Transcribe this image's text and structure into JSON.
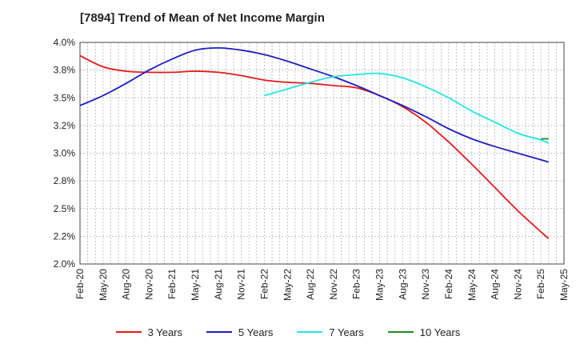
{
  "chart_data": {
    "type": "line",
    "title": "[7894]  Trend of Mean of Net Income Margin",
    "xlabel": "",
    "ylabel": "",
    "x_ticks": [
      "Feb-20",
      "May-20",
      "Aug-20",
      "Nov-20",
      "Feb-21",
      "May-21",
      "Aug-21",
      "Nov-21",
      "Feb-22",
      "May-22",
      "Aug-22",
      "Nov-22",
      "Feb-23",
      "May-23",
      "Aug-23",
      "Nov-23",
      "Feb-24",
      "May-24",
      "Aug-24",
      "Nov-24",
      "Feb-25",
      "May-25"
    ],
    "y_ticks": [
      "2.0%",
      "2.2%",
      "2.5%",
      "2.8%",
      "3.0%",
      "3.2%",
      "3.5%",
      "3.8%",
      "4.0%"
    ],
    "y_tick_values": [
      2.0,
      2.25,
      2.5,
      2.75,
      3.0,
      3.25,
      3.5,
      3.75,
      4.0
    ],
    "ylim": [
      2.0,
      4.0
    ],
    "grid": true,
    "legend_position": "bottom",
    "series": [
      {
        "name": "3 Years",
        "color": "#e31a1c",
        "points": [
          [
            "Feb-20",
            3.88
          ],
          [
            "May-20",
            3.78
          ],
          [
            "Aug-20",
            3.74
          ],
          [
            "Nov-20",
            3.73
          ],
          [
            "Feb-21",
            3.73
          ],
          [
            "May-21",
            3.74
          ],
          [
            "Aug-21",
            3.73
          ],
          [
            "Nov-21",
            3.7
          ],
          [
            "Feb-22",
            3.66
          ],
          [
            "May-22",
            3.64
          ],
          [
            "Aug-22",
            3.63
          ],
          [
            "Nov-22",
            3.61
          ],
          [
            "Feb-23",
            3.59
          ],
          [
            "May-23",
            3.52
          ],
          [
            "Aug-23",
            3.42
          ],
          [
            "Nov-23",
            3.28
          ],
          [
            "Feb-24",
            3.1
          ],
          [
            "May-24",
            2.9
          ],
          [
            "Aug-24",
            2.69
          ],
          [
            "Nov-24",
            2.48
          ],
          [
            "Feb-25",
            2.29
          ],
          [
            "Mar-25",
            2.23
          ]
        ]
      },
      {
        "name": "5 Years",
        "color": "#1f1fbf",
        "points": [
          [
            "Feb-20",
            3.43
          ],
          [
            "May-20",
            3.52
          ],
          [
            "Aug-20",
            3.63
          ],
          [
            "Nov-20",
            3.75
          ],
          [
            "Feb-21",
            3.85
          ],
          [
            "May-21",
            3.93
          ],
          [
            "Aug-21",
            3.95
          ],
          [
            "Nov-21",
            3.93
          ],
          [
            "Feb-22",
            3.89
          ],
          [
            "May-22",
            3.83
          ],
          [
            "Aug-22",
            3.76
          ],
          [
            "Nov-22",
            3.69
          ],
          [
            "Feb-23",
            3.61
          ],
          [
            "May-23",
            3.52
          ],
          [
            "Aug-23",
            3.43
          ],
          [
            "Nov-23",
            3.33
          ],
          [
            "Feb-24",
            3.22
          ],
          [
            "May-24",
            3.13
          ],
          [
            "Aug-24",
            3.06
          ],
          [
            "Nov-24",
            3.0
          ],
          [
            "Feb-25",
            2.94
          ],
          [
            "Mar-25",
            2.92
          ]
        ]
      },
      {
        "name": "7 Years",
        "color": "#22e5e5",
        "points": [
          [
            "Feb-22",
            3.52
          ],
          [
            "May-22",
            3.58
          ],
          [
            "Aug-22",
            3.64
          ],
          [
            "Nov-22",
            3.69
          ],
          [
            "Feb-23",
            3.71
          ],
          [
            "May-23",
            3.72
          ],
          [
            "Aug-23",
            3.68
          ],
          [
            "Nov-23",
            3.6
          ],
          [
            "Feb-24",
            3.5
          ],
          [
            "May-24",
            3.38
          ],
          [
            "Aug-24",
            3.28
          ],
          [
            "Nov-24",
            3.18
          ],
          [
            "Feb-25",
            3.12
          ],
          [
            "Mar-25",
            3.09
          ]
        ]
      },
      {
        "name": "10 Years",
        "color": "#228b22",
        "points": [
          [
            "Feb-25",
            3.13
          ],
          [
            "Mar-25",
            3.13
          ]
        ]
      }
    ]
  }
}
